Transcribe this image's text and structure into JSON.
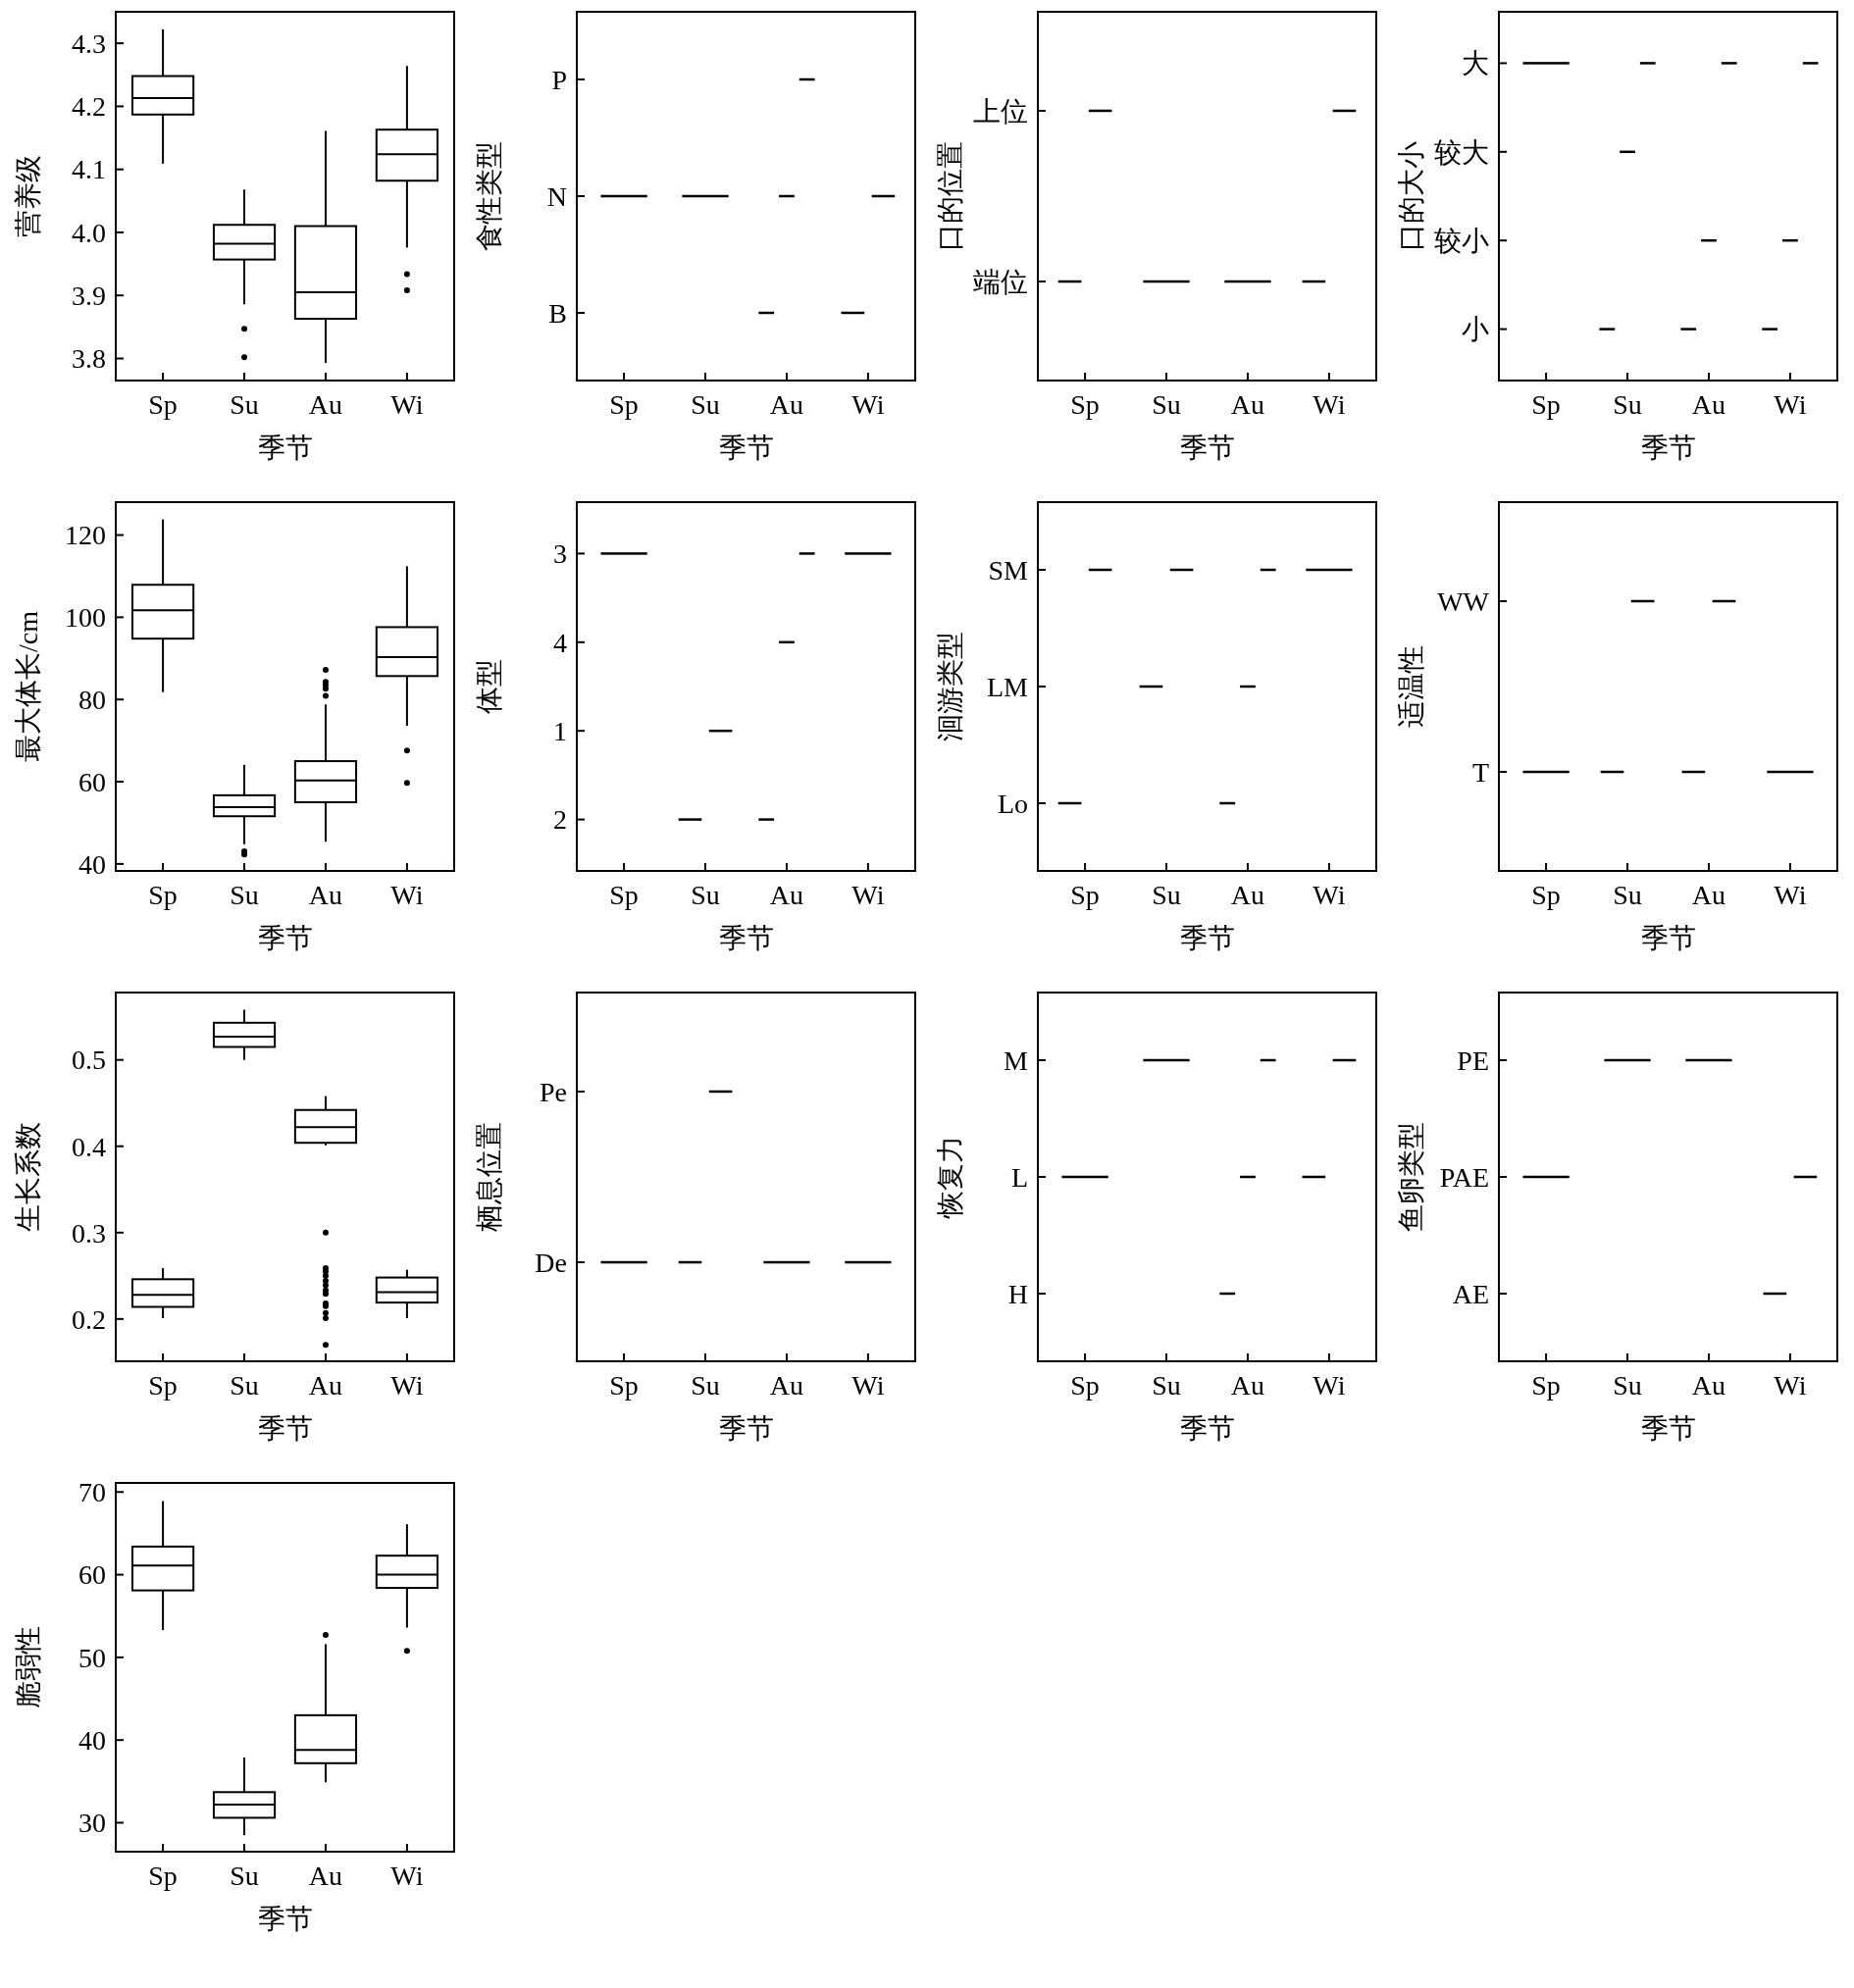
{
  "chart_data": [
    {
      "type": "box",
      "categories": [
        "Sp",
        "Su",
        "Au",
        "Wi"
      ],
      "xlabel": "季节",
      "ylabel": "营养级",
      "ylim": [
        3.765,
        4.35
      ],
      "yticks": [
        {
          "value": 3.8,
          "label": "3.8"
        },
        {
          "value": 3.9,
          "label": "3.9"
        },
        {
          "value": 4,
          "label": "4.0"
        },
        {
          "value": 4.1,
          "label": "4.1"
        },
        {
          "value": 4.2,
          "label": "4.2"
        },
        {
          "value": 4.3,
          "label": "4.3"
        }
      ],
      "boxes": [
        {
          "low": 4.109,
          "q1": 4.187,
          "median": 4.213,
          "q3": 4.248,
          "high": 4.322
        },
        {
          "low": 3.886,
          "q1": 3.957,
          "median": 3.982,
          "q3": 4.012,
          "high": 4.068,
          "outliers": [
            3.847,
            3.802
          ]
        },
        {
          "low": 3.793,
          "q1": 3.863,
          "median": 3.905,
          "q3": 4.01,
          "high": 4.161
        },
        {
          "low": 3.976,
          "q1": 4.082,
          "median": 4.124,
          "q3": 4.163,
          "high": 4.264,
          "outliers": [
            3.934,
            3.908
          ]
        }
      ]
    },
    {
      "type": "heatmap",
      "categories": [
        "Sp",
        "Su",
        "Au",
        "Wi"
      ],
      "y_categories": [
        "P",
        "N",
        "B"
      ],
      "xlabel": "季节",
      "ylabel": "食性类型",
      "cells": [
        [
          null,
          null,
          true,
          null
        ],
        [
          true,
          true,
          true,
          true
        ],
        [
          null,
          null,
          true,
          true
        ]
      ]
    },
    {
      "type": "heatmap",
      "categories": [
        "Sp",
        "Su",
        "Au",
        "Wi"
      ],
      "y_categories": [
        "上位",
        "端位"
      ],
      "xlabel": "季节",
      "ylabel": "口的位置",
      "cells": [
        [
          true,
          null,
          null,
          true
        ],
        [
          true,
          true,
          true,
          true
        ]
      ]
    },
    {
      "type": "heatmap",
      "categories": [
        "Sp",
        "Su",
        "Au",
        "Wi"
      ],
      "y_categories": [
        "大",
        "较大",
        "较小",
        "小"
      ],
      "xlabel": "季节",
      "ylabel": "口的大小",
      "cells": [
        [
          true,
          true,
          true,
          true
        ],
        [
          null,
          true,
          null,
          null
        ],
        [
          null,
          null,
          true,
          true
        ],
        [
          null,
          true,
          true,
          true
        ]
      ]
    },
    {
      "type": "box",
      "categories": [
        "Sp",
        "Su",
        "Au",
        "Wi"
      ],
      "xlabel": "季节",
      "ylabel": "最大体长/cm",
      "ylim": [
        38.3,
        128
      ],
      "yticks": [
        40,
        60,
        80,
        100,
        120
      ],
      "boxes": [
        {
          "low": 81.8,
          "q1": 94.8,
          "median": 101.7,
          "q3": 107.9,
          "high": 123.8
        },
        {
          "low": 44.8,
          "q1": 51.6,
          "median": 53.8,
          "q3": 56.7,
          "high": 64.1,
          "outliers": [
            43.1,
            42.3
          ]
        },
        {
          "low": 45.4,
          "q1": 55,
          "median": 60.3,
          "q3": 65,
          "high": 78.8,
          "outliers": [
            87.2,
            84.3,
            83.5,
            82.6,
            80.9
          ]
        },
        {
          "low": 73.6,
          "q1": 85.7,
          "median": 90.3,
          "q3": 97.6,
          "high": 112.4,
          "outliers": [
            67.6,
            59.7
          ]
        }
      ]
    },
    {
      "type": "heatmap",
      "categories": [
        "Sp",
        "Su",
        "Au",
        "Wi"
      ],
      "y_categories": [
        "3",
        "4",
        "1",
        "2"
      ],
      "xlabel": "季节",
      "ylabel": "体型",
      "cells": [
        [
          true,
          null,
          true,
          true
        ],
        [
          null,
          null,
          true,
          null
        ],
        [
          null,
          true,
          null,
          null
        ],
        [
          null,
          true,
          true,
          null
        ]
      ]
    },
    {
      "type": "heatmap",
      "categories": [
        "Sp",
        "Su",
        "Au",
        "Wi"
      ],
      "y_categories": [
        "SM",
        "LM",
        "Lo"
      ],
      "xlabel": "季节",
      "ylabel": "洄游类型",
      "cells": [
        [
          true,
          true,
          true,
          true
        ],
        [
          null,
          true,
          true,
          null
        ],
        [
          true,
          null,
          true,
          null
        ]
      ]
    },
    {
      "type": "heatmap",
      "categories": [
        "Sp",
        "Su",
        "Au",
        "Wi"
      ],
      "y_categories": [
        "WW",
        "T"
      ],
      "xlabel": "季节",
      "ylabel": "适温性",
      "cells": [
        [
          null,
          true,
          true,
          null
        ],
        [
          true,
          true,
          true,
          true
        ]
      ]
    },
    {
      "type": "box",
      "categories": [
        "Sp",
        "Su",
        "Au",
        "Wi"
      ],
      "xlabel": "季节",
      "ylabel": "生长系数",
      "ylim": [
        0.151,
        0.578
      ],
      "yticks": [
        0.2,
        0.3,
        0.4,
        0.5
      ],
      "boxes": [
        {
          "low": 0.201,
          "q1": 0.214,
          "median": 0.228,
          "q3": 0.246,
          "high": 0.259
        },
        {
          "low": 0.5,
          "q1": 0.515,
          "median": 0.527,
          "q3": 0.543,
          "high": 0.558
        },
        {
          "low": 0.401,
          "q1": 0.404,
          "median": 0.422,
          "q3": 0.442,
          "high": 0.458,
          "outliers": [
            0.3,
            0.259,
            0.255,
            0.25,
            0.244,
            0.239,
            0.233,
            0.229,
            0.218,
            0.215,
            0.207,
            0.201,
            0.17
          ]
        },
        {
          "low": 0.201,
          "q1": 0.219,
          "median": 0.231,
          "q3": 0.248,
          "high": 0.257
        }
      ]
    },
    {
      "type": "heatmap",
      "categories": [
        "Sp",
        "Su",
        "Au",
        "Wi"
      ],
      "y_categories": [
        "Pe",
        "De"
      ],
      "xlabel": "季节",
      "ylabel": "栖息位置",
      "cells": [
        [
          null,
          true,
          null,
          null
        ],
        [
          true,
          true,
          true,
          true
        ]
      ]
    },
    {
      "type": "heatmap",
      "categories": [
        "Sp",
        "Su",
        "Au",
        "Wi"
      ],
      "y_categories": [
        "M",
        "L",
        "H"
      ],
      "xlabel": "季节",
      "ylabel": "恢复力",
      "cells": [
        [
          null,
          true,
          true,
          true
        ],
        [
          true,
          null,
          true,
          true
        ],
        [
          null,
          null,
          true,
          null
        ]
      ]
    },
    {
      "type": "heatmap",
      "categories": [
        "Sp",
        "Su",
        "Au",
        "Wi"
      ],
      "y_categories": [
        "PE",
        "PAE",
        "AE"
      ],
      "xlabel": "季节",
      "ylabel": "鱼卵类型",
      "cells": [
        [
          null,
          true,
          true,
          null
        ],
        [
          true,
          null,
          null,
          true
        ],
        [
          null,
          null,
          null,
          true
        ]
      ]
    },
    {
      "type": "box",
      "categories": [
        "Sp",
        "Su",
        "Au",
        "Wi"
      ],
      "xlabel": "季节",
      "ylabel": "脆弱性",
      "ylim": [
        26.5,
        71.1
      ],
      "yticks": [
        30,
        40,
        50,
        60,
        70
      ],
      "boxes": [
        {
          "low": 53.3,
          "q1": 58.1,
          "median": 61.1,
          "q3": 63.4,
          "high": 68.9
        },
        {
          "low": 28.5,
          "q1": 30.6,
          "median": 32.2,
          "q3": 33.7,
          "high": 37.9
        },
        {
          "low": 34.9,
          "q1": 37.2,
          "median": 38.8,
          "q3": 43,
          "high": 51.6,
          "outliers": [
            52.7
          ]
        },
        {
          "low": 53.6,
          "q1": 58.4,
          "median": 60,
          "q3": 62.3,
          "high": 66.1,
          "outliers": [
            50.8
          ]
        }
      ]
    }
  ]
}
